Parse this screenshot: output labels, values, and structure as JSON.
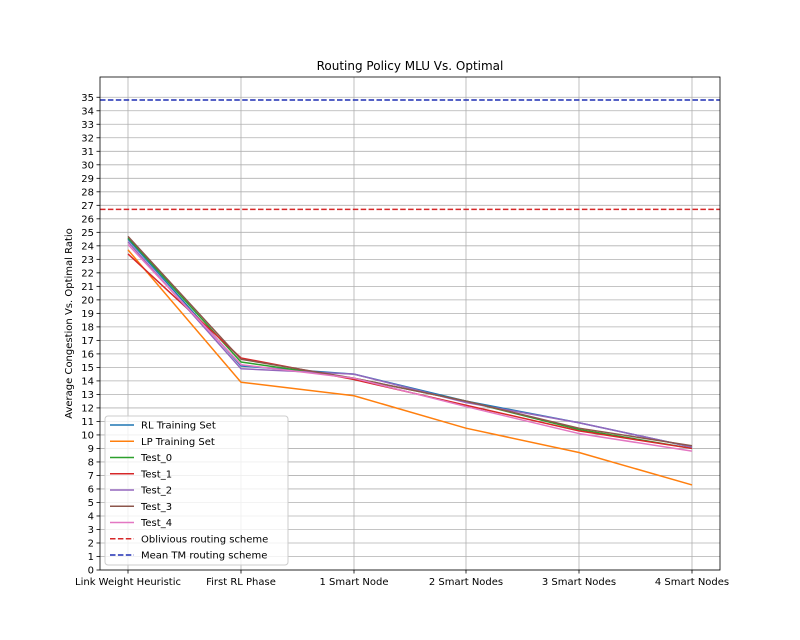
{
  "chart_data": {
    "type": "line",
    "title": "Routing Policy MLU Vs. Optimal",
    "xlabel": "",
    "ylabel": "Average Congestion Vs. Optimal Ratio",
    "categories": [
      "Link Weight Heuristic",
      "First RL Phase",
      "1 Smart Node",
      "2 Smart Nodes",
      "3 Smart Nodes",
      "4 Smart Nodes"
    ],
    "ylim": [
      0,
      36.5
    ],
    "yticks": [
      0,
      1,
      2,
      3,
      4,
      5,
      6,
      7,
      8,
      9,
      10,
      11,
      12,
      13,
      14,
      15,
      16,
      17,
      18,
      19,
      20,
      21,
      22,
      23,
      24,
      25,
      26,
      27,
      28,
      29,
      30,
      31,
      32,
      33,
      34,
      35
    ],
    "grid": true,
    "legend_position": "lower-left",
    "series": [
      {
        "name": "RL Training Set",
        "color": "#1f77b4",
        "style": "solid",
        "values": [
          24.5,
          15.1,
          14.5,
          12.5,
          10.9,
          9.1
        ]
      },
      {
        "name": "LP Training Set",
        "color": "#ff7f0e",
        "style": "solid",
        "values": [
          23.7,
          13.9,
          12.9,
          10.5,
          8.7,
          6.3
        ]
      },
      {
        "name": "Test_0",
        "color": "#2ca02c",
        "style": "solid",
        "values": [
          24.6,
          15.4,
          14.2,
          12.5,
          10.4,
          9.0
        ]
      },
      {
        "name": "Test_1",
        "color": "#d62728",
        "style": "solid",
        "values": [
          23.4,
          15.7,
          14.1,
          12.2,
          10.3,
          9.0
        ]
      },
      {
        "name": "Test_2",
        "color": "#9467bd",
        "style": "solid",
        "values": [
          24.3,
          14.9,
          14.5,
          12.4,
          10.9,
          9.1
        ]
      },
      {
        "name": "Test_3",
        "color": "#8c564b",
        "style": "solid",
        "values": [
          24.7,
          15.6,
          14.2,
          12.5,
          10.5,
          9.2
        ]
      },
      {
        "name": "Test_4",
        "color": "#e377c2",
        "style": "solid",
        "values": [
          24.1,
          15.2,
          14.2,
          12.1,
          10.1,
          8.8
        ]
      },
      {
        "name": "Oblivious routing scheme",
        "color": "#d62728",
        "style": "dashed",
        "constant": 26.7
      },
      {
        "name": "Mean TM routing scheme",
        "color": "#1f2fb4",
        "style": "dashed",
        "constant": 34.8
      }
    ]
  }
}
